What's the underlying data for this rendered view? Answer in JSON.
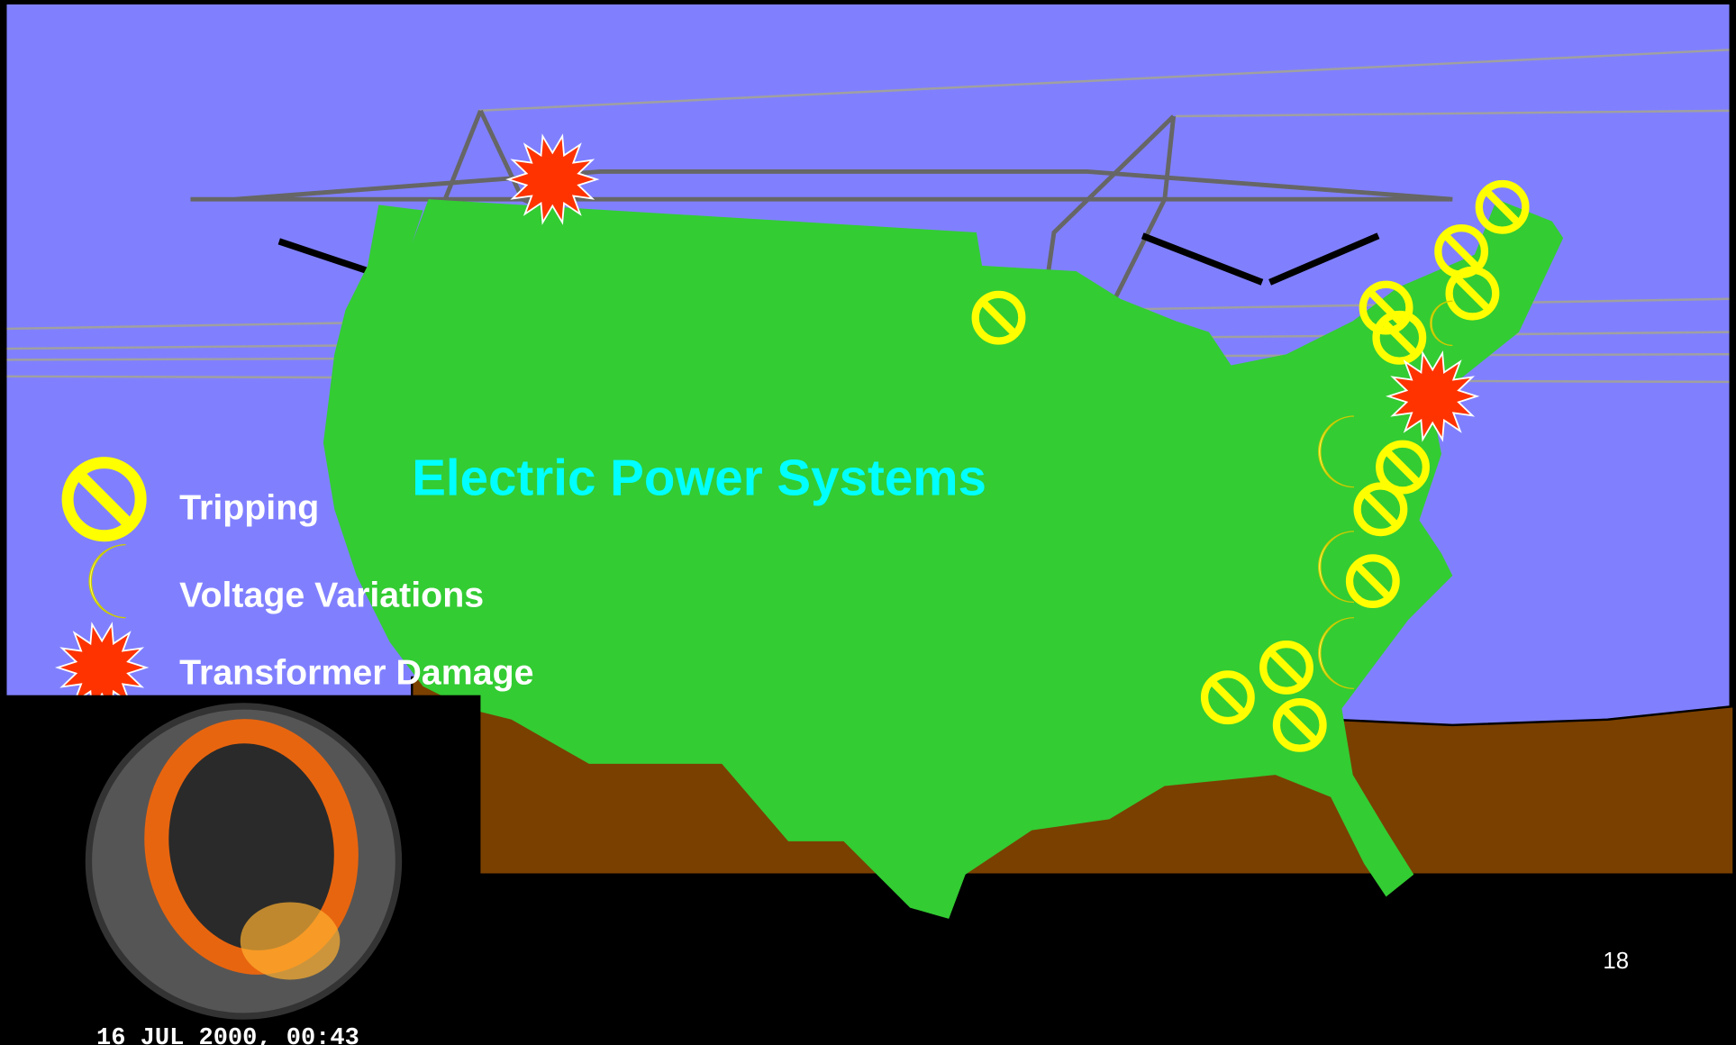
{
  "title": "Electric Power Systems",
  "legend": [
    {
      "label": "Tripping"
    },
    {
      "label": "Voltage Variations"
    },
    {
      "label": "Transformer Damage"
    }
  ],
  "page_number": "18",
  "inset_caption": "16 JUL 2000, 00:43"
}
